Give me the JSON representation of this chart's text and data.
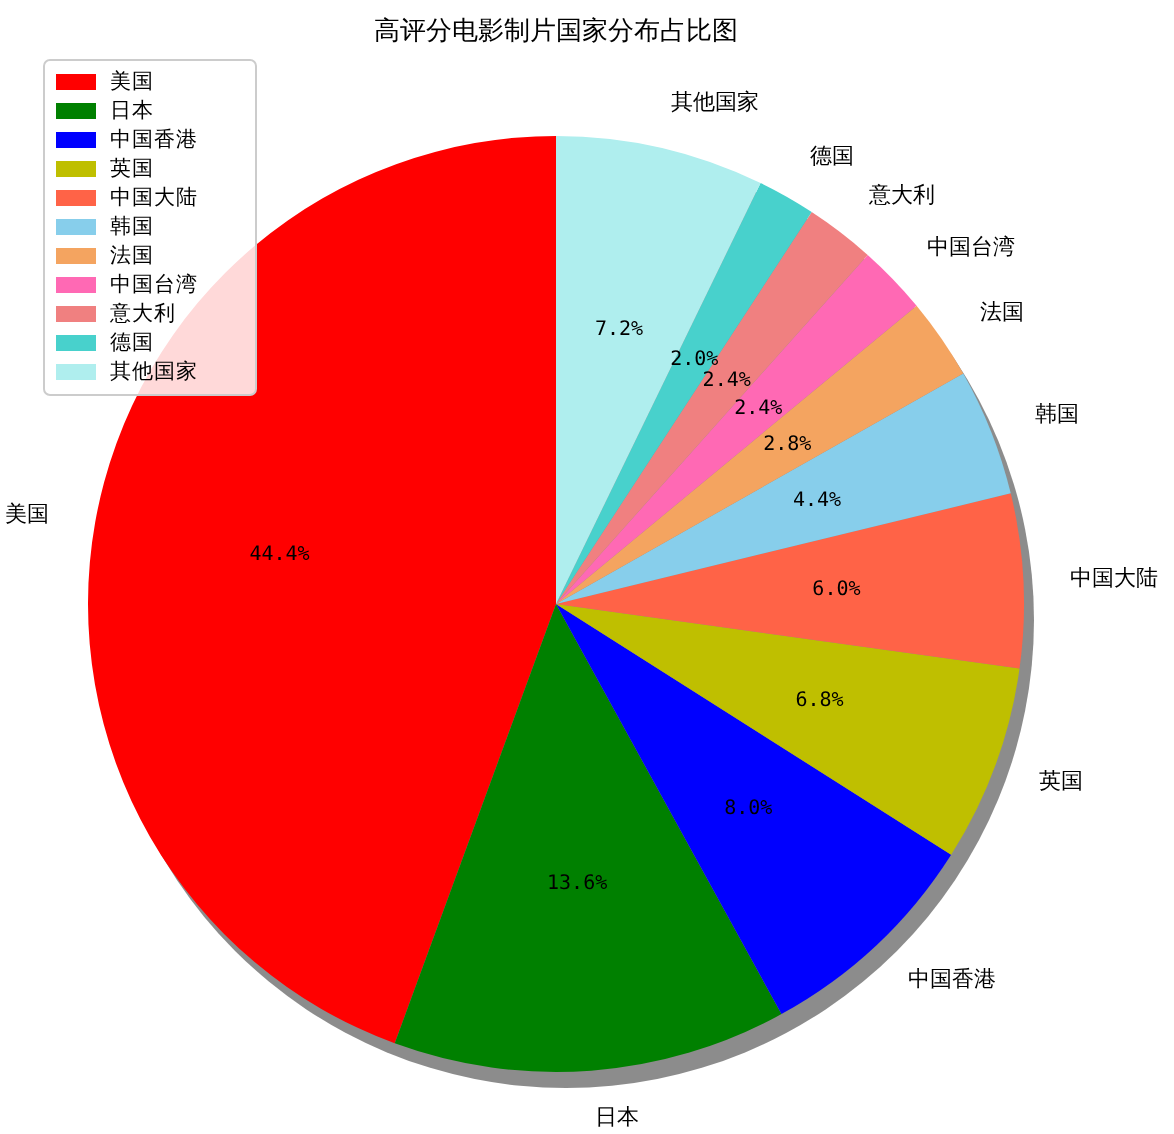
{
  "chart_data": {
    "type": "pie",
    "title": "高评分电影制片国家分布占比图",
    "categories": [
      "美国",
      "日本",
      "中国香港",
      "英国",
      "中国大陆",
      "韩国",
      "法国",
      "中国台湾",
      "意大利",
      "德国",
      "其他国家"
    ],
    "values": [
      44.4,
      13.6,
      8.0,
      6.8,
      6.0,
      4.4,
      2.8,
      2.4,
      2.4,
      2.0,
      7.2
    ],
    "colors": [
      "#ff0000",
      "#008000",
      "#0000ff",
      "#bfbf00",
      "#ff6347",
      "#87ceeb",
      "#f4a460",
      "#ff69b4",
      "#f08080",
      "#48d1cc",
      "#afeeee"
    ],
    "value_labels": [
      "44.4%",
      "13.6%",
      "8.0%",
      "6.8%",
      "6.0%",
      "4.4%",
      "2.8%",
      "2.4%",
      "2.4%",
      "2.0%",
      "7.2%"
    ],
    "legend": "top left"
  }
}
